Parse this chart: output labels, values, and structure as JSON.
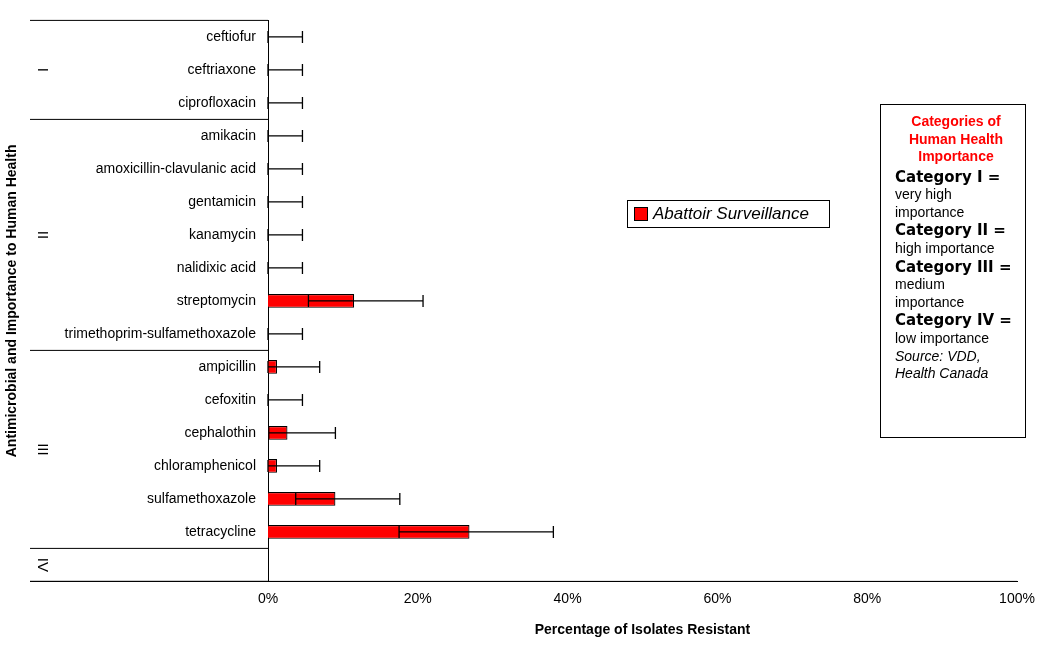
{
  "chart_data": {
    "type": "bar",
    "orientation": "horizontal",
    "xlabel": "Percentage of Isolates Resistant",
    "ylabel": "Antimicrobial and Importance to Human Health",
    "categories": [
      "ceftiofur",
      "ceftriaxone",
      "ciprofloxacin",
      "amikacin",
      "amoxicillin-clavulanic acid",
      "gentamicin",
      "kanamycin",
      "nalidixic acid",
      "streptomycin",
      "trimethoprim-sulfamethoxazole",
      "ampicillin",
      "cefoxitin",
      "cephalothin",
      "chloramphenicol",
      "sulfamethoxazole",
      "tetracycline",
      null
    ],
    "series": [
      {
        "name": "Abattoir Surveillance",
        "color": "#ff0000",
        "values": [
          0,
          0,
          0,
          0,
          0,
          0,
          0,
          0,
          11.5,
          0,
          1.2,
          0,
          2.6,
          1.2,
          9.0,
          26.9,
          null
        ],
        "errors": [
          [
            0,
            4.6
          ],
          [
            0,
            4.6
          ],
          [
            0,
            4.6
          ],
          [
            0,
            4.6
          ],
          [
            0,
            4.6
          ],
          [
            0,
            4.6
          ],
          [
            0,
            4.6
          ],
          [
            0,
            4.6
          ],
          [
            5.4,
            20.7
          ],
          [
            0,
            4.6
          ],
          [
            0,
            6.9
          ],
          [
            0,
            4.6
          ],
          [
            0.1,
            9.0
          ],
          [
            0,
            6.9
          ],
          [
            3.7,
            17.6
          ],
          [
            17.5,
            38.1
          ],
          null
        ]
      }
    ],
    "xlim": [
      0,
      100
    ],
    "xticks": [
      {
        "value": 0,
        "label": "0%"
      },
      {
        "value": 20,
        "label": "20%"
      },
      {
        "value": 40,
        "label": "40%"
      },
      {
        "value": 60,
        "label": "60%"
      },
      {
        "value": 80,
        "label": "80%"
      },
      {
        "value": 100,
        "label": "100%"
      }
    ],
    "grid": false,
    "legend": "right",
    "annotations": [
      "I",
      "II",
      "III",
      "IV",
      "Categories of Human Health Importance",
      "Category I =",
      "very high importance",
      "Category II =",
      "high importance",
      "Category III =",
      "medium importance",
      "Category IV =",
      "low importance",
      "Source: VDD, Health Canada"
    ]
  }
}
